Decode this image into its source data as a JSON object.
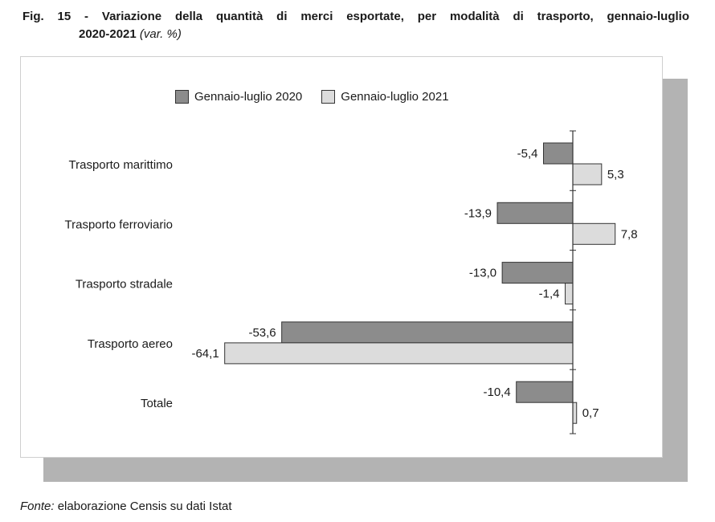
{
  "header": {
    "title_main": "Fig. 15 - Variazione della quantità di merci esportate, per modalità di trasporto, gennaio-luglio",
    "title_years": "2020-2021",
    "title_unit": "(var. %)"
  },
  "footer": {
    "source_label": "Fonte:",
    "source_text": "elaborazione Censis su dati Istat"
  },
  "colors": {
    "series_2020": "#8c8c8c",
    "series_2021": "#dcdcdc",
    "bar_stroke": "#333333",
    "shadow": "#b3b3b3"
  },
  "chart_data": {
    "type": "bar",
    "orientation": "horizontal",
    "categories": [
      "Trasporto marittimo",
      "Trasporto ferroviario",
      "Trasporto stradale",
      "Trasporto aereo",
      "Totale"
    ],
    "series": [
      {
        "name": "Gennaio-luglio 2020",
        "values": [
          -5.4,
          -13.9,
          -13.0,
          -53.6,
          -10.4
        ],
        "labels": [
          "-5,4",
          "-13,9",
          "-13,0",
          "-53,6",
          "-10,4"
        ]
      },
      {
        "name": "Gennaio-luglio 2021",
        "values": [
          5.3,
          7.8,
          -1.4,
          -64.1,
          0.7
        ],
        "labels": [
          "5,3",
          "7,8",
          "-1,4",
          "-64,1",
          "0,7"
        ]
      }
    ],
    "xlim": [
      -64.1,
      7.8
    ],
    "legend_position": "top-center",
    "grid": false
  }
}
